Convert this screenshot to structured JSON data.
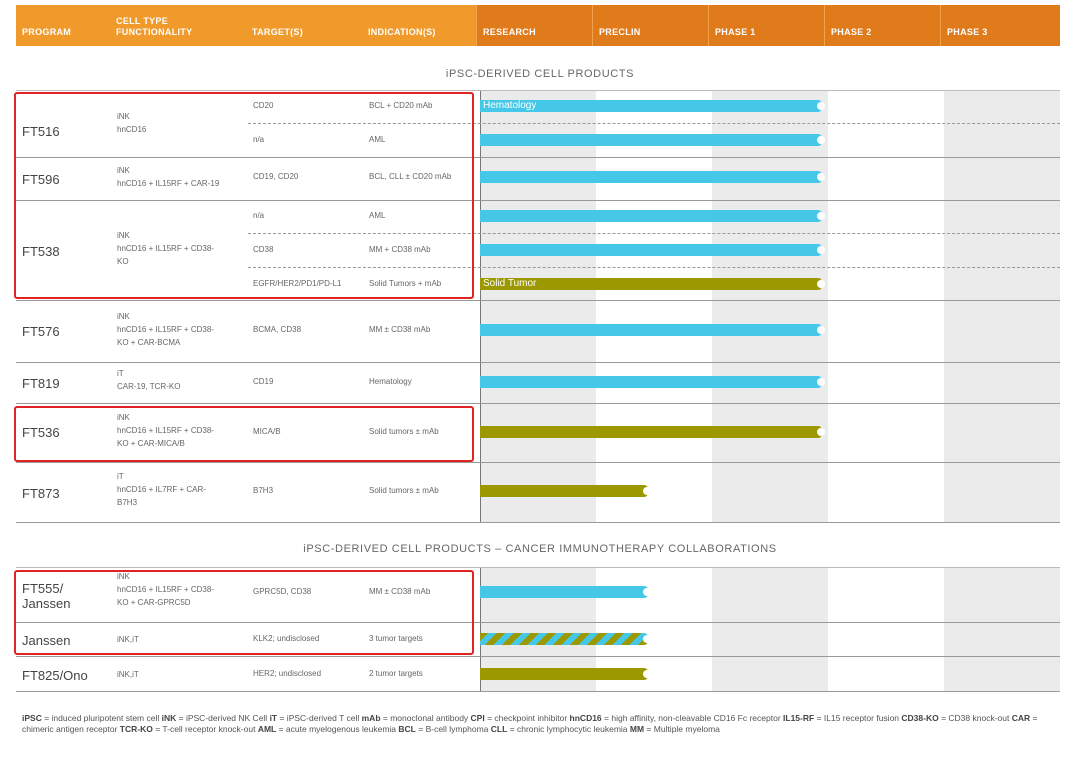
{
  "header": {
    "columns": [
      {
        "label": "PROGRAM"
      },
      {
        "label": "CELL TYPE\nFUNCTIONALITY"
      },
      {
        "label": "TARGET(S)"
      },
      {
        "label": "INDICATION(S)"
      },
      {
        "label": "RESEARCH"
      },
      {
        "label": "PRECLIN"
      },
      {
        "label": "PHASE 1"
      },
      {
        "label": "PHASE 2"
      },
      {
        "label": "PHASE 3"
      }
    ]
  },
  "sections": [
    {
      "title": "iPSC-DERIVED CELL PRODUCTS"
    },
    {
      "title": "iPSC-DERIVED CELL PRODUCTS – CANCER IMMUNOTHERAPY COLLABORATIONS"
    }
  ],
  "colors": {
    "header_left": "#f09a2c",
    "header_phase": "#e07b1c",
    "hematology": "#45c8e8",
    "solid_tumor": "#9c9800",
    "highlight": "#e02424"
  },
  "chart_data": {
    "type": "table",
    "phases": [
      "RESEARCH",
      "PRECLIN",
      "PHASE 1",
      "PHASE 2",
      "PHASE 3"
    ],
    "programs": [
      {
        "program": "FT516",
        "cell": [
          "iNK",
          "hnCD16"
        ],
        "rows": [
          {
            "target": "CD20",
            "indication": "BCL + CD20 mAb",
            "progress": 3,
            "color": "hematology",
            "label": "Hematology"
          },
          {
            "target": "n/a",
            "indication": "AML",
            "progress": 3,
            "color": "hematology",
            "label": ""
          }
        ]
      },
      {
        "program": "FT596",
        "cell": [
          "iNK",
          "hnCD16 + IL15RF + CAR-19"
        ],
        "rows": [
          {
            "target": "CD19, CD20",
            "indication": "BCL, CLL ± CD20 mAb",
            "progress": 3,
            "color": "hematology",
            "label": ""
          }
        ]
      },
      {
        "program": "FT538",
        "cell": [
          "iNK",
          "hnCD16 + IL15RF + CD38-",
          "KO"
        ],
        "rows": [
          {
            "target": "n/a",
            "indication": "AML",
            "progress": 3,
            "color": "hematology",
            "label": ""
          },
          {
            "target": "CD38",
            "indication": "MM + CD38 mAb",
            "progress": 3,
            "color": "hematology",
            "label": ""
          },
          {
            "target": "EGFR/HER2/PD1/PD-L1",
            "indication": "Solid Tumors + mAb",
            "progress": 3,
            "color": "solid_tumor",
            "label": "Solid Tumor"
          }
        ]
      },
      {
        "program": "FT576",
        "cell": [
          "iNK",
          "hnCD16 + IL15RF + CD38-",
          "KO + CAR-BCMA"
        ],
        "rows": [
          {
            "target": "BCMA, CD38",
            "indication": "MM ± CD38 mAb",
            "progress": 3,
            "color": "hematology",
            "label": ""
          }
        ]
      },
      {
        "program": "FT819",
        "cell": [
          "iT",
          "CAR-19, TCR-KO"
        ],
        "rows": [
          {
            "target": "CD19",
            "indication": "Hematology",
            "progress": 3,
            "color": "hematology",
            "label": ""
          }
        ]
      },
      {
        "program": "FT536",
        "cell": [
          "iNK",
          "hnCD16 + IL15RF + CD38-",
          "KO + CAR-MICA/B"
        ],
        "rows": [
          {
            "target": "MICA/B",
            "indication": "Solid tumors ± mAb",
            "progress": 3,
            "color": "solid_tumor",
            "label": ""
          }
        ]
      },
      {
        "program": "FT873",
        "cell": [
          "iT",
          "hnCD16 + IL7RF + CAR-",
          "B7H3"
        ],
        "rows": [
          {
            "target": "B7H3",
            "indication": "Solid tumors ± mAb",
            "progress": 1.5,
            "color": "solid_tumor",
            "label": ""
          }
        ]
      },
      {
        "program": "FT555/\nJanssen",
        "cell": [
          "iNK",
          "hnCD16 + IL15RF + CD38-",
          "KO + CAR-GPRC5D"
        ],
        "rows": [
          {
            "target": "GPRC5D, CD38",
            "indication": "MM ± CD38 mAb",
            "progress": 1.5,
            "color": "hematology",
            "label": ""
          }
        ]
      },
      {
        "program": "Janssen",
        "cell": [
          "iNK,iT"
        ],
        "rows": [
          {
            "target": "KLK2; undisclosed",
            "indication": "3 tumor targets",
            "progress": 1.5,
            "color": "mixed",
            "label": ""
          }
        ]
      },
      {
        "program": "FT825/Ono",
        "cell": [
          "iNK,iT"
        ],
        "rows": [
          {
            "target": "HER2; undisclosed",
            "indication": "2 tumor targets",
            "progress": 1.5,
            "color": "solid_tumor",
            "label": ""
          }
        ]
      }
    ]
  },
  "footnote": [
    {
      "term": "iPSC",
      "def": "= induced pluripotent stem cell"
    },
    {
      "term": "iNK",
      "def": "= iPSC-derived NK Cell"
    },
    {
      "term": "iT",
      "def": "= iPSC-derived T cell"
    },
    {
      "term": "mAb",
      "def": "= monoclonal antibody"
    },
    {
      "term": "CPI",
      "def": "= checkpoint inhibitor"
    },
    {
      "term": "hnCD16",
      "def": "= high affinity, non-cleavable CD16 Fc receptor"
    },
    {
      "term": "IL15-RF",
      "def": "= IL15 receptor fusion"
    },
    {
      "term": "CD38-KO",
      "def": "= CD38 knock-out"
    },
    {
      "term": "CAR",
      "def": "= chimeric antigen receptor"
    },
    {
      "term": "TCR-KO",
      "def": "= T-cell receptor knock-out"
    },
    {
      "term": "AML",
      "def": "= acute myelogenous leukemia"
    },
    {
      "term": "BCL",
      "def": "= B-cell lymphoma"
    },
    {
      "term": "CLL",
      "def": "= chronic lymphocytic leukemia"
    },
    {
      "term": "MM",
      "def": "= Multiple myeloma"
    }
  ]
}
